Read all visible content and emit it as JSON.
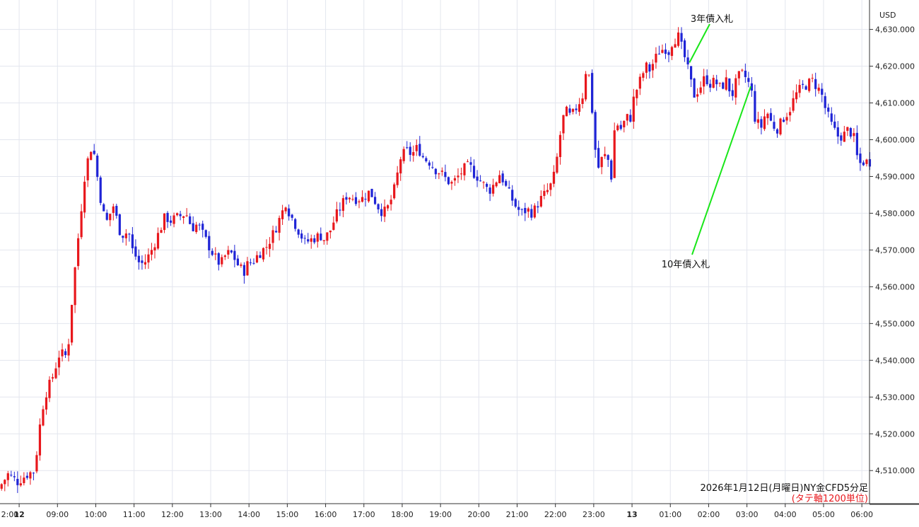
{
  "chart_data": {
    "type": "candlestick",
    "currency_label": "USD",
    "caption": "2026年1月12日(月曜日)NY金CFD5分足",
    "caption_note": "(タテ軸1200単位)",
    "colors": {
      "up": "#e8171c",
      "down": "#1f24d6",
      "annotation_line": "#19e619",
      "note": "#e8171c"
    },
    "y_ticks": [
      "4,630.000",
      "4,620.000",
      "4,610.000",
      "4,600.000",
      "4,590.000",
      "4,580.000",
      "4,570.000",
      "4,560.000",
      "4,550.000",
      "4,540.000",
      "4,530.000",
      "4,520.000",
      "4,510.000"
    ],
    "x_ticks": [
      "2:00",
      "12",
      "09:00",
      "10:00",
      "11:00",
      "12:00",
      "13:00",
      "14:00",
      "15:00",
      "16:00",
      "17:00",
      "18:00",
      "19:00",
      "20:00",
      "21:00",
      "22:00",
      "23:00",
      "13",
      "01:00",
      "02:00",
      "03:00",
      "04:00",
      "05:00",
      "06:00"
    ],
    "x_range_hours": [
      7.5,
      30.2
    ],
    "ylim": [
      4501,
      4638
    ],
    "annotations": [
      {
        "label": "3年債入札",
        "time_h": 25.5,
        "price": 4621
      },
      {
        "label": "10年債入札",
        "time_h": 27.1,
        "price": 4614.5
      }
    ],
    "closes": [
      [
        7.5,
        4505
      ],
      [
        7.75,
        4509
      ],
      [
        8.0,
        4507
      ],
      [
        8.25,
        4509
      ],
      [
        8.45,
        4510
      ],
      [
        8.55,
        4520
      ],
      [
        8.7,
        4530
      ],
      [
        8.9,
        4535
      ],
      [
        9.1,
        4542
      ],
      [
        9.3,
        4541
      ],
      [
        9.45,
        4560
      ],
      [
        9.6,
        4575
      ],
      [
        9.75,
        4590
      ],
      [
        9.9,
        4598
      ],
      [
        10.0,
        4596
      ],
      [
        10.15,
        4585
      ],
      [
        10.3,
        4577
      ],
      [
        10.5,
        4582
      ],
      [
        10.7,
        4574
      ],
      [
        10.9,
        4575
      ],
      [
        11.0,
        4570
      ],
      [
        11.2,
        4566
      ],
      [
        11.35,
        4567
      ],
      [
        11.5,
        4570
      ],
      [
        11.7,
        4575
      ],
      [
        11.85,
        4579
      ],
      [
        12.0,
        4578
      ],
      [
        12.2,
        4579
      ],
      [
        12.4,
        4580
      ],
      [
        12.55,
        4576
      ],
      [
        12.7,
        4577
      ],
      [
        12.85,
        4574
      ],
      [
        13.0,
        4571
      ],
      [
        13.15,
        4568
      ],
      [
        13.3,
        4566
      ],
      [
        13.45,
        4569
      ],
      [
        13.6,
        4569
      ],
      [
        13.75,
        4566
      ],
      [
        13.9,
        4564
      ],
      [
        14.0,
        4566
      ],
      [
        14.15,
        4567
      ],
      [
        14.3,
        4569
      ],
      [
        14.5,
        4571
      ],
      [
        14.7,
        4575
      ],
      [
        14.9,
        4580
      ],
      [
        15.0,
        4583
      ],
      [
        15.1,
        4580
      ],
      [
        15.25,
        4577
      ],
      [
        15.4,
        4574
      ],
      [
        15.5,
        4572
      ],
      [
        15.7,
        4573
      ],
      [
        15.9,
        4574
      ],
      [
        16.0,
        4573
      ],
      [
        16.15,
        4575
      ],
      [
        16.3,
        4579
      ],
      [
        16.45,
        4582
      ],
      [
        16.6,
        4585
      ],
      [
        16.8,
        4584
      ],
      [
        17.0,
        4584
      ],
      [
        17.2,
        4586
      ],
      [
        17.4,
        4582
      ],
      [
        17.55,
        4580
      ],
      [
        17.7,
        4582
      ],
      [
        17.85,
        4587
      ],
      [
        18.0,
        4595
      ],
      [
        18.15,
        4597
      ],
      [
        18.3,
        4596
      ],
      [
        18.45,
        4598
      ],
      [
        18.6,
        4595
      ],
      [
        18.75,
        4594
      ],
      [
        18.9,
        4592
      ],
      [
        19.05,
        4591
      ],
      [
        19.2,
        4589
      ],
      [
        19.35,
        4588
      ],
      [
        19.5,
        4590
      ],
      [
        19.65,
        4592
      ],
      [
        19.8,
        4593
      ],
      [
        19.9,
        4591
      ],
      [
        20.0,
        4590
      ],
      [
        20.15,
        4588
      ],
      [
        20.3,
        4586
      ],
      [
        20.45,
        4588
      ],
      [
        20.6,
        4591
      ],
      [
        20.75,
        4587
      ],
      [
        20.9,
        4584
      ],
      [
        21.0,
        4582
      ],
      [
        21.15,
        4580
      ],
      [
        21.3,
        4581
      ],
      [
        21.45,
        4580
      ],
      [
        21.6,
        4583
      ],
      [
        21.75,
        4585
      ],
      [
        21.9,
        4587
      ],
      [
        22.0,
        4590
      ],
      [
        22.1,
        4596
      ],
      [
        22.2,
        4604
      ],
      [
        22.3,
        4608
      ],
      [
        22.45,
        4606
      ],
      [
        22.6,
        4609
      ],
      [
        22.75,
        4612
      ],
      [
        22.85,
        4620
      ],
      [
        22.95,
        4616
      ],
      [
        23.05,
        4600
      ],
      [
        23.15,
        4592
      ],
      [
        23.3,
        4596
      ],
      [
        23.45,
        4594
      ],
      [
        23.5,
        4590
      ],
      [
        23.6,
        4605
      ],
      [
        23.75,
        4603
      ],
      [
        23.9,
        4606
      ],
      [
        24.0,
        4606
      ],
      [
        24.1,
        4612
      ],
      [
        24.25,
        4616
      ],
      [
        24.4,
        4620
      ],
      [
        24.5,
        4619
      ],
      [
        24.6,
        4621
      ],
      [
        24.75,
        4624
      ],
      [
        24.9,
        4625
      ],
      [
        25.0,
        4624
      ],
      [
        25.1,
        4627
      ],
      [
        25.25,
        4628
      ],
      [
        25.4,
        4623
      ],
      [
        25.55,
        4617
      ],
      [
        25.65,
        4612
      ],
      [
        25.8,
        4614
      ],
      [
        25.95,
        4617
      ],
      [
        26.1,
        4615
      ],
      [
        26.2,
        4616
      ],
      [
        26.35,
        4614
      ],
      [
        26.5,
        4616
      ],
      [
        26.65,
        4612
      ],
      [
        26.8,
        4617
      ],
      [
        26.95,
        4618
      ],
      [
        27.05,
        4616
      ],
      [
        27.15,
        4614
      ],
      [
        27.25,
        4606
      ],
      [
        27.4,
        4603
      ],
      [
        27.55,
        4608
      ],
      [
        27.7,
        4604
      ],
      [
        27.85,
        4603
      ],
      [
        28.0,
        4606
      ],
      [
        28.15,
        4608
      ],
      [
        28.3,
        4612
      ],
      [
        28.45,
        4614
      ],
      [
        28.6,
        4615
      ],
      [
        28.75,
        4616
      ],
      [
        28.9,
        4614
      ],
      [
        29.0,
        4612
      ],
      [
        29.1,
        4608
      ],
      [
        29.25,
        4604
      ],
      [
        29.4,
        4601
      ],
      [
        29.55,
        4601
      ],
      [
        29.7,
        4603
      ],
      [
        29.85,
        4600
      ],
      [
        29.95,
        4593
      ],
      [
        30.05,
        4594
      ],
      [
        30.2,
        4594
      ]
    ]
  }
}
